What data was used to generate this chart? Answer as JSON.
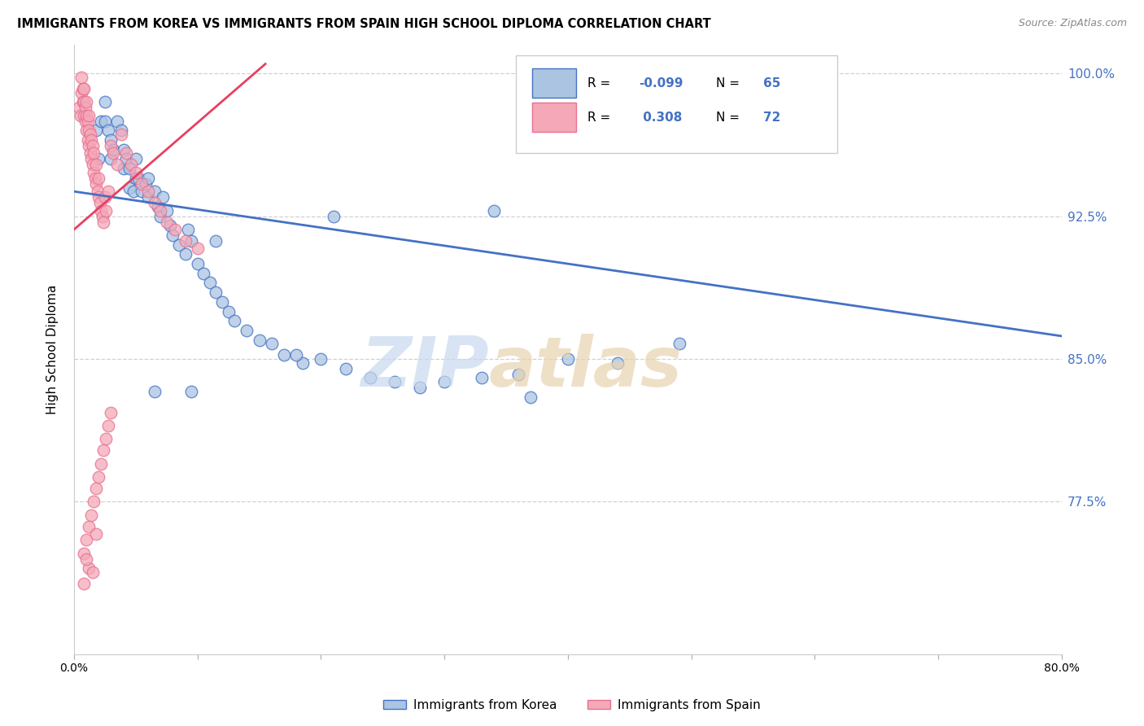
{
  "title": "IMMIGRANTS FROM KOREA VS IMMIGRANTS FROM SPAIN HIGH SCHOOL DIPLOMA CORRELATION CHART",
  "source": "Source: ZipAtlas.com",
  "ylabel": "High School Diploma",
  "ytick_labels": [
    "100.0%",
    "92.5%",
    "85.0%",
    "77.5%"
  ],
  "ytick_values": [
    1.0,
    0.925,
    0.85,
    0.775
  ],
  "xlim": [
    0.0,
    0.8
  ],
  "ylim": [
    0.695,
    1.015
  ],
  "korea_color": "#aac4e2",
  "spain_color": "#f4a8b8",
  "korea_edge_color": "#4472c4",
  "spain_edge_color": "#e87090",
  "korea_line_color": "#4472c4",
  "spain_line_color": "#e84060",
  "watermark_zip_color": "#c8d8ee",
  "watermark_atlas_color": "#e8d4b0",
  "korea_R": -0.099,
  "spain_R": 0.308,
  "korea_line_x0": 0.0,
  "korea_line_x1": 0.8,
  "korea_line_y0": 0.938,
  "korea_line_y1": 0.862,
  "spain_line_x0": 0.0,
  "spain_line_x1": 0.155,
  "spain_line_y0": 0.918,
  "spain_line_y1": 1.005,
  "korea_x": [
    0.018,
    0.02,
    0.022,
    0.025,
    0.025,
    0.028,
    0.03,
    0.03,
    0.032,
    0.035,
    0.038,
    0.04,
    0.04,
    0.042,
    0.045,
    0.045,
    0.048,
    0.05,
    0.05,
    0.052,
    0.055,
    0.058,
    0.06,
    0.06,
    0.065,
    0.068,
    0.07,
    0.072,
    0.075,
    0.078,
    0.08,
    0.085,
    0.09,
    0.092,
    0.095,
    0.1,
    0.105,
    0.11,
    0.115,
    0.12,
    0.125,
    0.13,
    0.14,
    0.15,
    0.16,
    0.17,
    0.185,
    0.2,
    0.22,
    0.24,
    0.26,
    0.28,
    0.3,
    0.33,
    0.36,
    0.4,
    0.44,
    0.49,
    0.34,
    0.18,
    0.095,
    0.065,
    0.21,
    0.37,
    0.115
  ],
  "korea_y": [
    0.97,
    0.955,
    0.975,
    0.975,
    0.985,
    0.97,
    0.955,
    0.965,
    0.96,
    0.975,
    0.97,
    0.95,
    0.96,
    0.955,
    0.94,
    0.95,
    0.938,
    0.945,
    0.955,
    0.945,
    0.938,
    0.942,
    0.935,
    0.945,
    0.938,
    0.93,
    0.925,
    0.935,
    0.928,
    0.92,
    0.915,
    0.91,
    0.905,
    0.918,
    0.912,
    0.9,
    0.895,
    0.89,
    0.885,
    0.88,
    0.875,
    0.87,
    0.865,
    0.86,
    0.858,
    0.852,
    0.848,
    0.85,
    0.845,
    0.84,
    0.838,
    0.835,
    0.838,
    0.84,
    0.842,
    0.85,
    0.848,
    0.858,
    0.928,
    0.852,
    0.833,
    0.833,
    0.925,
    0.83,
    0.912
  ],
  "spain_x": [
    0.004,
    0.005,
    0.006,
    0.006,
    0.007,
    0.007,
    0.008,
    0.008,
    0.008,
    0.009,
    0.009,
    0.01,
    0.01,
    0.01,
    0.011,
    0.011,
    0.012,
    0.012,
    0.012,
    0.013,
    0.013,
    0.014,
    0.014,
    0.015,
    0.015,
    0.016,
    0.016,
    0.017,
    0.018,
    0.018,
    0.019,
    0.02,
    0.02,
    0.021,
    0.022,
    0.023,
    0.024,
    0.025,
    0.026,
    0.028,
    0.03,
    0.032,
    0.035,
    0.038,
    0.042,
    0.046,
    0.05,
    0.055,
    0.06,
    0.065,
    0.07,
    0.075,
    0.082,
    0.09,
    0.1,
    0.008,
    0.01,
    0.012,
    0.014,
    0.016,
    0.018,
    0.02,
    0.022,
    0.024,
    0.026,
    0.028,
    0.03,
    0.012,
    0.008,
    0.01,
    0.015,
    0.018
  ],
  "spain_y": [
    0.982,
    0.978,
    0.99,
    0.998,
    0.985,
    0.992,
    0.978,
    0.985,
    0.992,
    0.975,
    0.982,
    0.97,
    0.978,
    0.985,
    0.965,
    0.975,
    0.962,
    0.97,
    0.978,
    0.958,
    0.968,
    0.955,
    0.965,
    0.952,
    0.962,
    0.948,
    0.958,
    0.945,
    0.942,
    0.952,
    0.938,
    0.935,
    0.945,
    0.932,
    0.928,
    0.925,
    0.922,
    0.935,
    0.928,
    0.938,
    0.962,
    0.958,
    0.952,
    0.968,
    0.958,
    0.952,
    0.948,
    0.942,
    0.938,
    0.932,
    0.928,
    0.922,
    0.918,
    0.912,
    0.908,
    0.748,
    0.755,
    0.762,
    0.768,
    0.775,
    0.782,
    0.788,
    0.795,
    0.802,
    0.808,
    0.815,
    0.822,
    0.74,
    0.732,
    0.745,
    0.738,
    0.758
  ]
}
